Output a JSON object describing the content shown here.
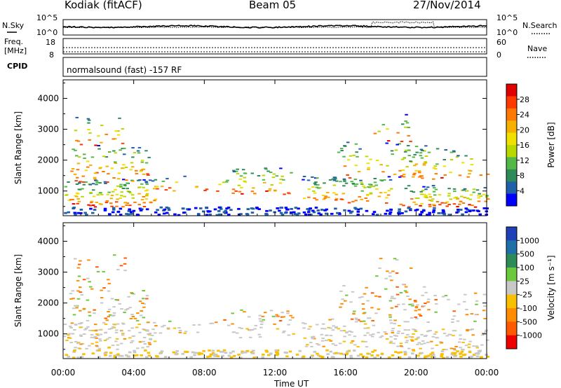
{
  "header": {
    "station": "Kodiak (fitACF)",
    "beam": "Beam 05",
    "date": "27/Nov/2014"
  },
  "noise_panel": {
    "left_label": "N.Sky",
    "right_label": "N.Search",
    "left_ticks": [
      "10^5",
      "10^0"
    ],
    "right_ticks": [
      "10^5",
      "10^0"
    ]
  },
  "freq_panel": {
    "left_label_1": "Freq.",
    "left_label_2": "[MHz]",
    "right_label": "Nave",
    "left_ticks": [
      "18",
      "8"
    ],
    "right_ticks": [
      "60",
      "0"
    ]
  },
  "cpid": {
    "label": "CPID",
    "text": "normalsound (fast) -157 RF"
  },
  "chart_data": [
    {
      "type": "heatmap",
      "title": "",
      "xlabel": "Time UT",
      "ylabel": "Slant Range [km]",
      "xlim": [
        0,
        24
      ],
      "ylim": [
        200,
        4600
      ],
      "x_ticks": [
        "00:00",
        "04:00",
        "08:00",
        "12:00",
        "16:00",
        "20:00",
        "00:00"
      ],
      "y_ticks": [
        "1000",
        "2000",
        "3000",
        "4000"
      ],
      "colorbar": {
        "label": "Power [dB]",
        "ticks": [
          "28",
          "24",
          "20",
          "16",
          "12",
          "8",
          "4"
        ],
        "colors": [
          "#e00000",
          "#ff3a00",
          "#ff7800",
          "#f5b000",
          "#f0e000",
          "#b8d800",
          "#54b848",
          "#2e8b57",
          "#2060a8",
          "#0000ff"
        ]
      }
    },
    {
      "type": "heatmap",
      "title": "",
      "xlabel": "Time UT",
      "ylabel": "Slant Range [km]",
      "xlim": [
        0,
        24
      ],
      "ylim": [
        200,
        4600
      ],
      "x_ticks": [
        "00:00",
        "04:00",
        "08:00",
        "12:00",
        "16:00",
        "20:00",
        "00:00"
      ],
      "y_ticks": [
        "1000",
        "2000",
        "3000",
        "4000"
      ],
      "colorbar": {
        "label": "Velocity [m s⁻¹]",
        "ticks": [
          "1000",
          "500",
          "100",
          "25",
          "-25",
          "-100",
          "-500",
          "-1000"
        ],
        "colors": [
          "#2040b8",
          "#1f6fa8",
          "#2e8b57",
          "#6cc83c",
          "#c8c8c8",
          "#f8c000",
          "#ff8c00",
          "#ff5a00",
          "#ee0000"
        ]
      }
    }
  ],
  "colors": {
    "frame": "#000000",
    "background": "#ffffff"
  }
}
